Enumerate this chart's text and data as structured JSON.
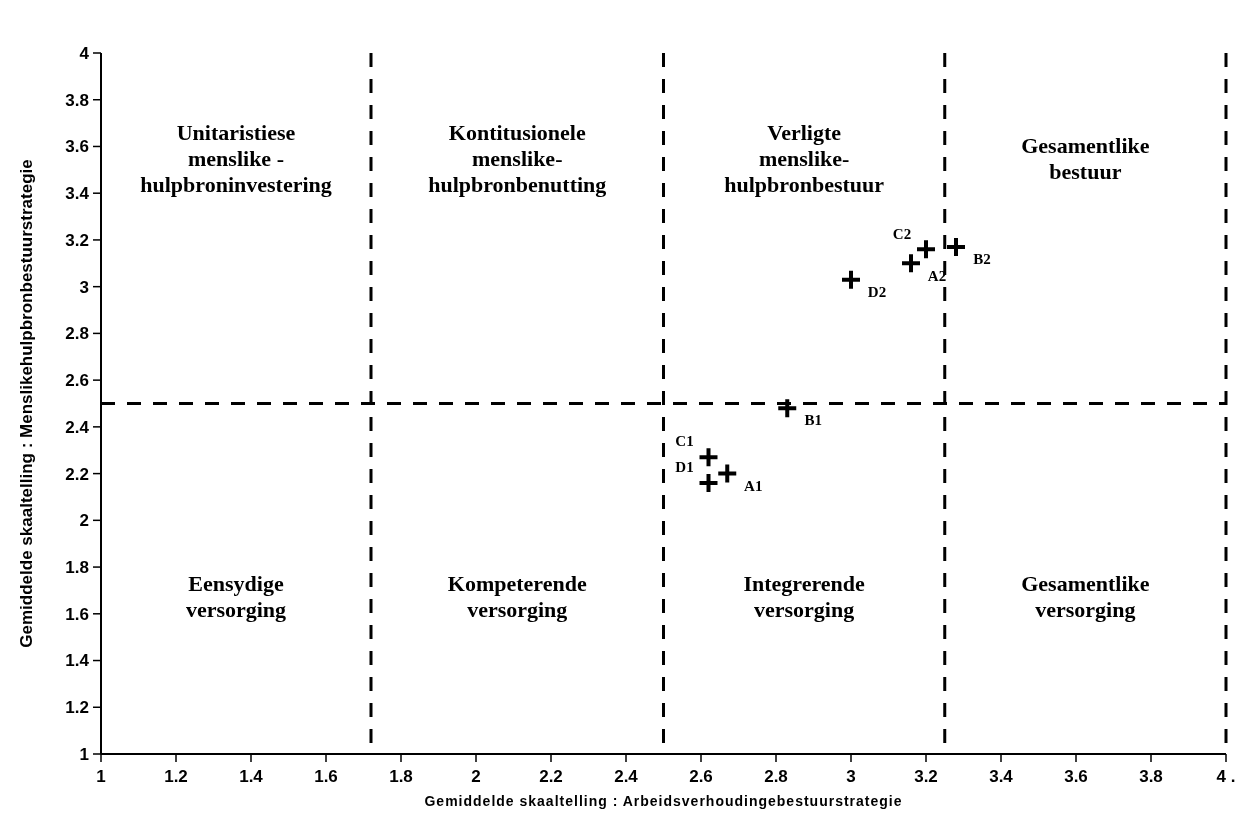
{
  "chart_data": {
    "type": "scatter",
    "xlabel": "Gemiddelde skaaltelling : Arbeidsverhoudingebestuurstrategie",
    "ylabel": "Gemiddelde skaaltelling : Menslikehulpbronbestuurstrategie",
    "xlim": [
      1,
      4
    ],
    "ylim": [
      1,
      4
    ],
    "xticks": [
      1,
      1.2,
      1.4,
      1.6,
      1.8,
      2,
      2.2,
      2.4,
      2.6,
      2.8,
      3,
      3.2,
      3.4,
      3.6,
      3.8,
      {
        "value": 4,
        "label": "4 ."
      }
    ],
    "yticks": [
      1,
      1.2,
      1.4,
      1.6,
      1.8,
      2,
      2.2,
      2.4,
      2.6,
      2.8,
      3,
      3.2,
      3.4,
      3.6,
      3.8,
      4
    ],
    "grid": false,
    "marker": "cross",
    "series": [
      {
        "color": "#000000",
        "x": [
          2.67,
          2.83,
          2.62,
          2.62,
          3.16,
          3.28,
          3.2,
          3.0
        ],
        "values": [
          2.2,
          2.48,
          2.27,
          2.16,
          3.1,
          3.17,
          3.16,
          3.03
        ]
      }
    ],
    "ref_lines": [
      {
        "axis": "x",
        "value": 1.72,
        "color": "#000000",
        "line_style": "dashed"
      },
      {
        "axis": "x",
        "value": 2.5,
        "color": "#000000",
        "line_style": "dashed"
      },
      {
        "axis": "x",
        "value": 3.25,
        "color": "#000000",
        "line_style": "dashed"
      },
      {
        "axis": "x",
        "value": 4,
        "color": "#000000",
        "line_style": "dashed"
      },
      {
        "axis": "y",
        "value": 2.5,
        "color": "#000000",
        "line_style": "dashed"
      }
    ],
    "annotations": [
      {
        "text": "A1",
        "x": 2.67,
        "y": 2.2
      },
      {
        "text": "B1",
        "x": 2.83,
        "y": 2.48
      },
      {
        "text": "C1",
        "x": 2.62,
        "y": 2.27
      },
      {
        "text": "D1",
        "x": 2.62,
        "y": 2.16
      },
      {
        "text": "A2",
        "x": 3.16,
        "y": 3.1
      },
      {
        "text": "B2",
        "x": 3.28,
        "y": 3.17
      },
      {
        "text": "C2",
        "x": 3.2,
        "y": 3.16
      },
      {
        "text": "D2",
        "x": 3.0,
        "y": 3.03
      },
      "Unitaristiese\nmenslike -\nhulpbroninvestering",
      "Kontitusionele\nmenslike-\nhulpbronbenutting",
      "Verligte\nmenslike-\nhulpbronbestuur",
      "Gesamentlike\nbestuur",
      "Eensydige\nversorging",
      "Kompeterende\nversorging",
      "Integrerende\nversorging",
      "Gesamentlike\nversorging"
    ]
  }
}
